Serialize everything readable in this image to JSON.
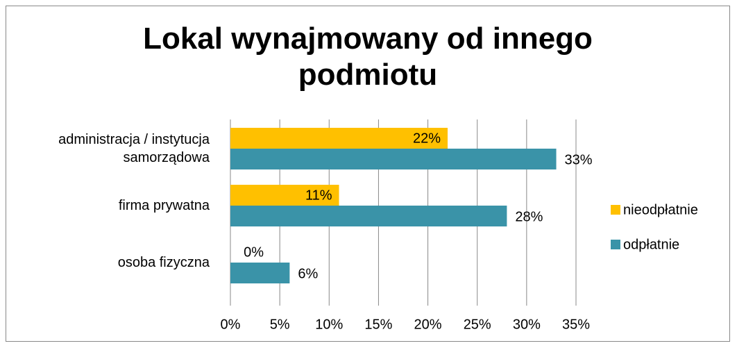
{
  "chart_data": {
    "type": "bar",
    "orientation": "horizontal",
    "title": "Lokal wynajmowany od innego podmiotu",
    "categories": [
      "administracja / instytucja samorządowa",
      "firma prywatna",
      "osoba fizyczna"
    ],
    "series": [
      {
        "name": "nieodpłatnie",
        "color": "#FFC000",
        "values": [
          22,
          11,
          0
        ],
        "value_labels": [
          "22%",
          "11%",
          "0%"
        ]
      },
      {
        "name": "odpłatnie",
        "color": "#3A93A8",
        "values": [
          33,
          28,
          6
        ],
        "value_labels": [
          "33%",
          "28%",
          "6%"
        ]
      }
    ],
    "xlim": [
      0,
      35
    ],
    "xticks": [
      {
        "value": 0,
        "label": "0%"
      },
      {
        "value": 5,
        "label": "5%"
      },
      {
        "value": 10,
        "label": "10%"
      },
      {
        "value": 15,
        "label": "15%"
      },
      {
        "value": 20,
        "label": "20%"
      },
      {
        "value": 25,
        "label": "25%"
      },
      {
        "value": 30,
        "label": "30%"
      },
      {
        "value": 35,
        "label": "35%"
      }
    ],
    "grid": true,
    "legend": "right"
  }
}
